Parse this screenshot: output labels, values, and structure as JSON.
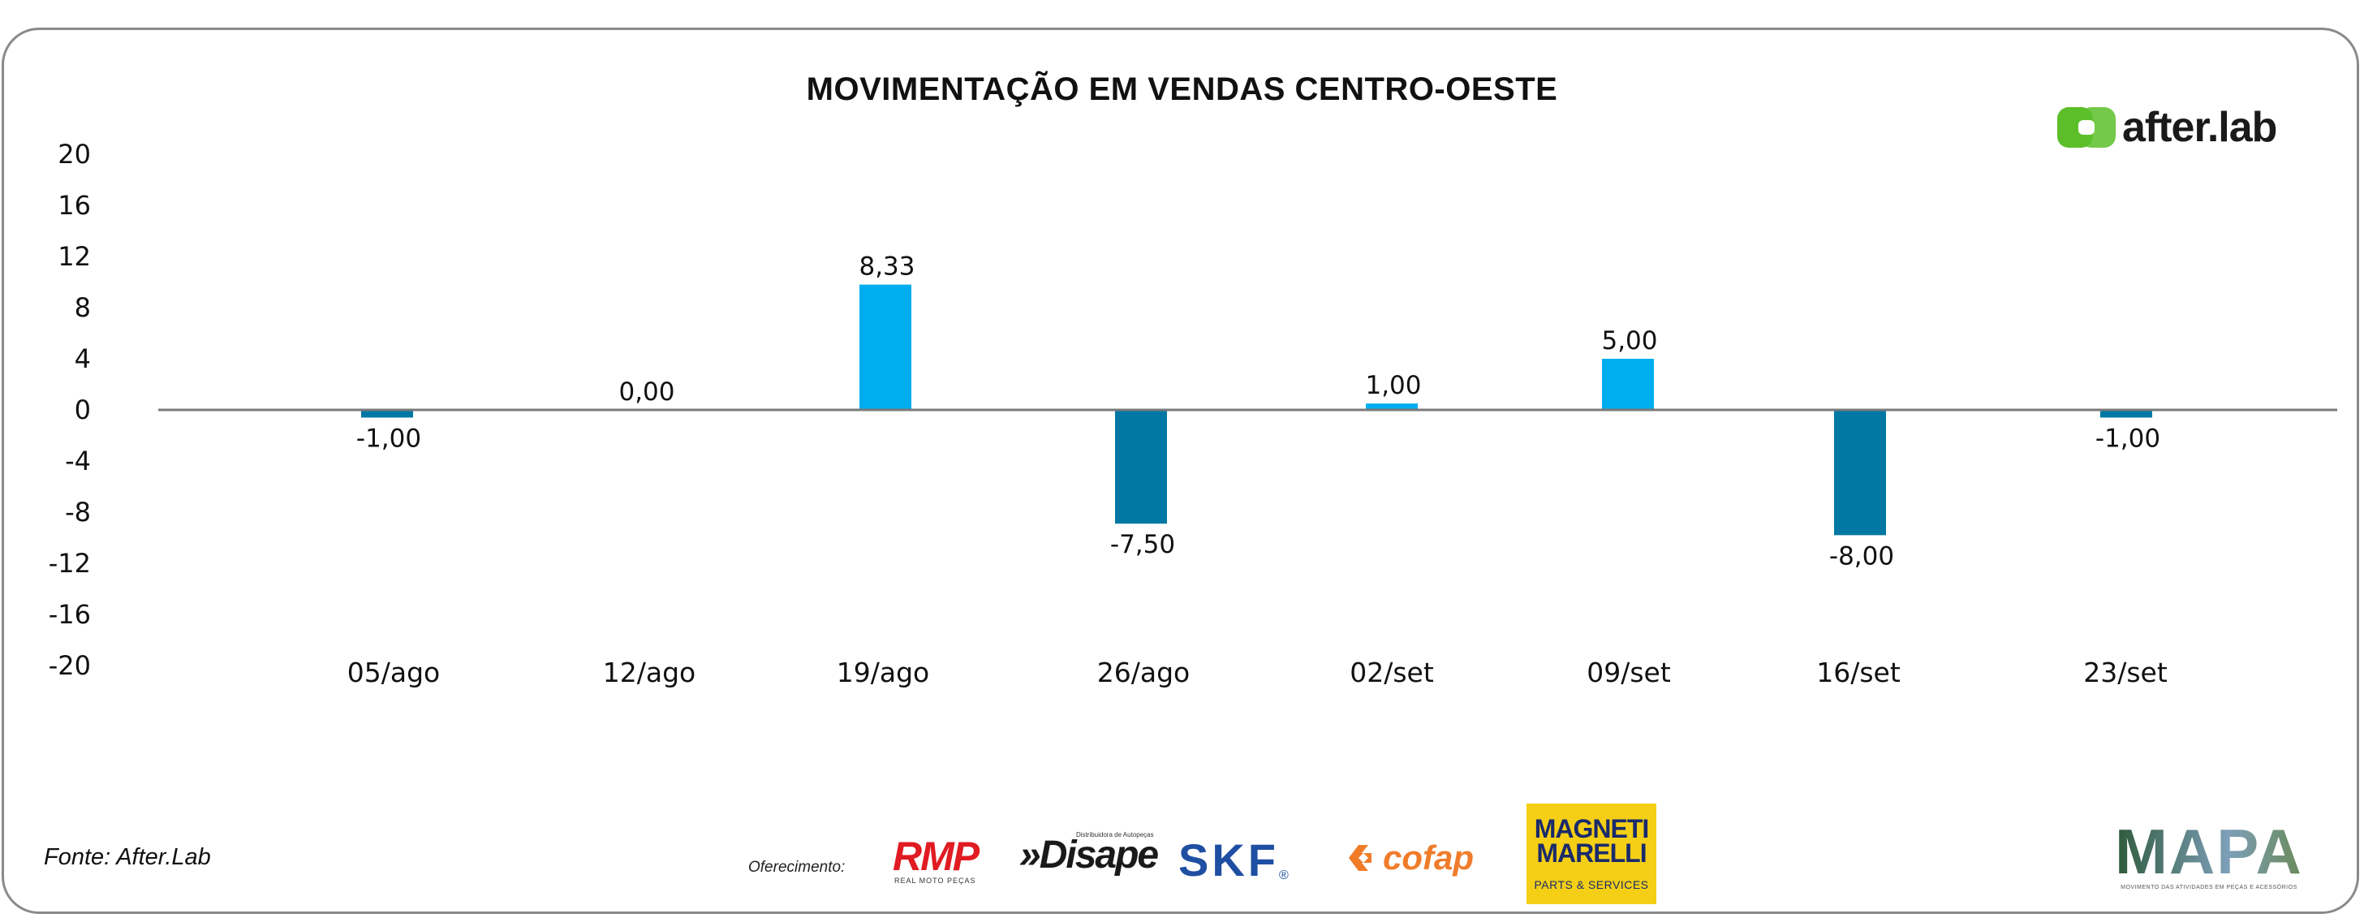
{
  "chart_data": {
    "type": "bar",
    "title": "MOVIMENTAÇÃO EM VENDAS CENTRO-OESTE",
    "xlabel": "",
    "ylabel": "",
    "ylim": [
      -20,
      20
    ],
    "yticks": [
      "20",
      "16",
      "12",
      "8",
      "4",
      "0",
      "-4",
      "-8",
      "-12",
      "-16",
      "-20"
    ],
    "ytick_values": [
      20,
      16,
      12,
      8,
      4,
      0,
      -4,
      -8,
      -12,
      -16,
      -20
    ],
    "categories": [
      "05/ago",
      "12/ago",
      "19/ago",
      "26/ago",
      "02/set",
      "09/set",
      "16/set",
      "23/set"
    ],
    "values": [
      -1.0,
      0.0,
      8.33,
      -7.5,
      1.0,
      5.0,
      -8.0,
      -1.0
    ],
    "bar_heights_visual": [
      -0.6,
      0.0,
      9.8,
      -8.9,
      0.5,
      4.0,
      -9.8,
      -0.6
    ],
    "data_labels": [
      "-1,00",
      "0,00",
      "8,33",
      "-7,50",
      "1,00",
      "5,00",
      "-8,00",
      "-1,00"
    ],
    "colors": {
      "positive": "#00aeef",
      "negative": "#0078a3",
      "axis": "#7a7a7a",
      "frame": "#8a8a8a"
    },
    "legend": "none",
    "grid": false
  },
  "footer": {
    "source": "Fonte: After.Lab",
    "sponsor_label": "Oferecimento:"
  },
  "brand": {
    "name": "after.lab",
    "color": "#5cbf2a"
  },
  "sponsors": {
    "rmp": "RMP",
    "rmp_sub": "REAL MOTO PEÇAS",
    "disape": "»Disape",
    "disape_sub": "Distribuidora de Autopeças",
    "skf": "SKF",
    "skf_reg": "®",
    "cofap": "cofap",
    "magneti_1": "MAGNETI",
    "magneti_2": "MARELLI",
    "magneti_sub": "PARTS & SERVICES",
    "mapa": "MAPA",
    "mapa_sub": "MOVIMENTO DAS ATIVIDADES EM PEÇAS E ACESSÓRIOS"
  }
}
